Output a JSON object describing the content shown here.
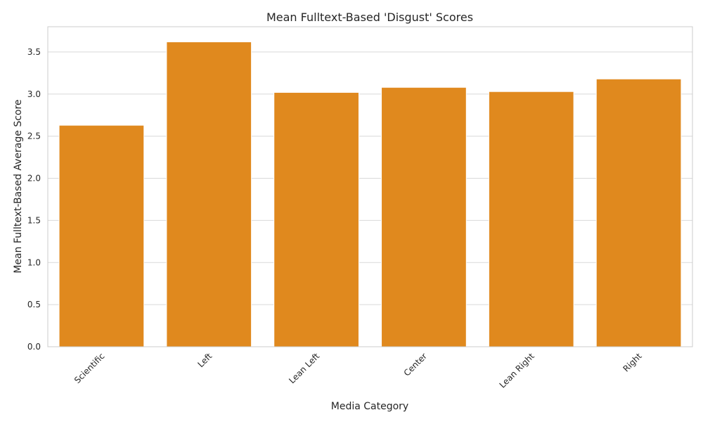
{
  "chart_data": {
    "type": "bar",
    "title": "Mean Fulltext-Based 'Disgust' Scores",
    "xlabel": "Media Category",
    "ylabel": "Mean Fulltext-Based Average Score",
    "categories": [
      "Scientific",
      "Left",
      "Lean Left",
      "Center",
      "Lean Right",
      "Right"
    ],
    "values": [
      2.63,
      3.62,
      3.02,
      3.08,
      3.03,
      3.18
    ],
    "ylim": [
      0,
      3.8
    ],
    "yticks": [
      0.0,
      0.5,
      1.0,
      1.5,
      2.0,
      2.5,
      3.0,
      3.5
    ],
    "ytick_labels": [
      "0.0",
      "0.5",
      "1.0",
      "1.5",
      "2.0",
      "2.5",
      "3.0",
      "3.5"
    ],
    "grid": true,
    "colors": {
      "bar": "#e0891e",
      "grid": "#d9d9d9",
      "frame": "#cccccc"
    }
  }
}
